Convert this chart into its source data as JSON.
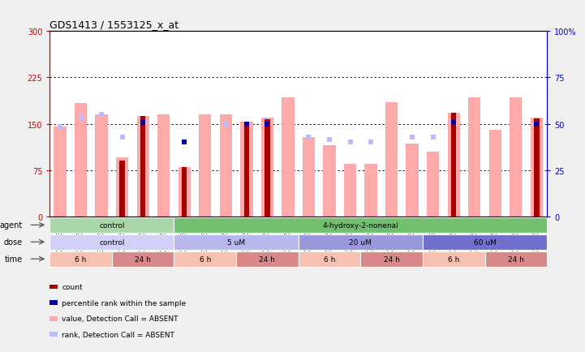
{
  "title": "GDS1413 / 1553125_x_at",
  "samples": [
    "GSM43955",
    "GSM45094",
    "GSM45108",
    "GSM45086",
    "GSM45100",
    "GSM45112",
    "GSM43956",
    "GSM45097",
    "GSM45109",
    "GSM45087",
    "GSM45101",
    "GSM45113",
    "GSM43957",
    "GSM45098",
    "GSM45110",
    "GSM45088",
    "GSM45104",
    "GSM45114",
    "GSM43958",
    "GSM45099",
    "GSM45111",
    "GSM45090",
    "GSM45106",
    "GSM45115"
  ],
  "red_bars": [
    0,
    0,
    0,
    90,
    163,
    0,
    80,
    0,
    0,
    153,
    157,
    0,
    0,
    0,
    0,
    0,
    0,
    0,
    0,
    168,
    0,
    0,
    0,
    158
  ],
  "pink_bars": [
    145,
    183,
    165,
    95,
    163,
    165,
    80,
    165,
    165,
    153,
    160,
    192,
    128,
    115,
    85,
    85,
    185,
    118,
    105,
    168,
    192,
    140,
    192,
    160
  ],
  "blue_squares_val": [
    null,
    null,
    null,
    null,
    152,
    null,
    120,
    null,
    null,
    150,
    150,
    null,
    null,
    null,
    null,
    null,
    null,
    null,
    null,
    152,
    null,
    null,
    null,
    150
  ],
  "light_blue_squares": [
    145,
    160,
    165,
    128,
    null,
    null,
    null,
    null,
    150,
    null,
    155,
    null,
    128,
    125,
    120,
    120,
    null,
    128,
    128,
    155,
    null,
    null,
    null,
    null
  ],
  "ylim_left": [
    0,
    300
  ],
  "ylim_right": [
    0,
    100
  ],
  "yticks_left": [
    0,
    75,
    150,
    225,
    300
  ],
  "yticks_right": [
    0,
    25,
    50,
    75,
    100
  ],
  "ytick_labels_left": [
    "0",
    "75",
    "150",
    "225",
    "300"
  ],
  "ytick_labels_right": [
    "0",
    "25",
    "50",
    "75",
    "100%"
  ],
  "hlines": [
    75,
    150,
    225
  ],
  "agent_groups": [
    {
      "label": "control",
      "start": 0,
      "end": 6,
      "color": "#a8d8a8"
    },
    {
      "label": "4-hydroxy-2-nonenal",
      "start": 6,
      "end": 24,
      "color": "#70c070"
    }
  ],
  "dose_groups": [
    {
      "label": "control",
      "start": 0,
      "end": 6,
      "color": "#d0d0f8"
    },
    {
      "label": "5 uM",
      "start": 6,
      "end": 12,
      "color": "#b8b8ee"
    },
    {
      "label": "20 uM",
      "start": 12,
      "end": 18,
      "color": "#9898dd"
    },
    {
      "label": "60 uM",
      "start": 18,
      "end": 24,
      "color": "#7070cc"
    }
  ],
  "time_groups": [
    {
      "label": "6 h",
      "start": 0,
      "end": 3,
      "color": "#f8c0b0"
    },
    {
      "label": "24 h",
      "start": 3,
      "end": 6,
      "color": "#d88888"
    },
    {
      "label": "6 h",
      "start": 6,
      "end": 9,
      "color": "#f8c0b0"
    },
    {
      "label": "24 h",
      "start": 9,
      "end": 12,
      "color": "#d88888"
    },
    {
      "label": "6 h",
      "start": 12,
      "end": 15,
      "color": "#f8c0b0"
    },
    {
      "label": "24 h",
      "start": 15,
      "end": 18,
      "color": "#d88888"
    },
    {
      "label": "6 h",
      "start": 18,
      "end": 21,
      "color": "#f8c0b0"
    },
    {
      "label": "24 h",
      "start": 21,
      "end": 24,
      "color": "#d88888"
    }
  ],
  "legend_items": [
    {
      "color": "#aa0000",
      "label": "count",
      "marker": "s"
    },
    {
      "color": "#0000aa",
      "label": "percentile rank within the sample",
      "marker": "s"
    },
    {
      "color": "#ffaaaa",
      "label": "value, Detection Call = ABSENT",
      "marker": "s"
    },
    {
      "color": "#bbbbff",
      "label": "rank, Detection Call = ABSENT",
      "marker": "s"
    }
  ],
  "bar_width": 0.6,
  "bg_color": "#f0f0f0",
  "plot_bg": "#ffffff",
  "left_axis_color": "#cc0000",
  "right_axis_color": "#0000cc",
  "grid_color": "#aaaaaa"
}
